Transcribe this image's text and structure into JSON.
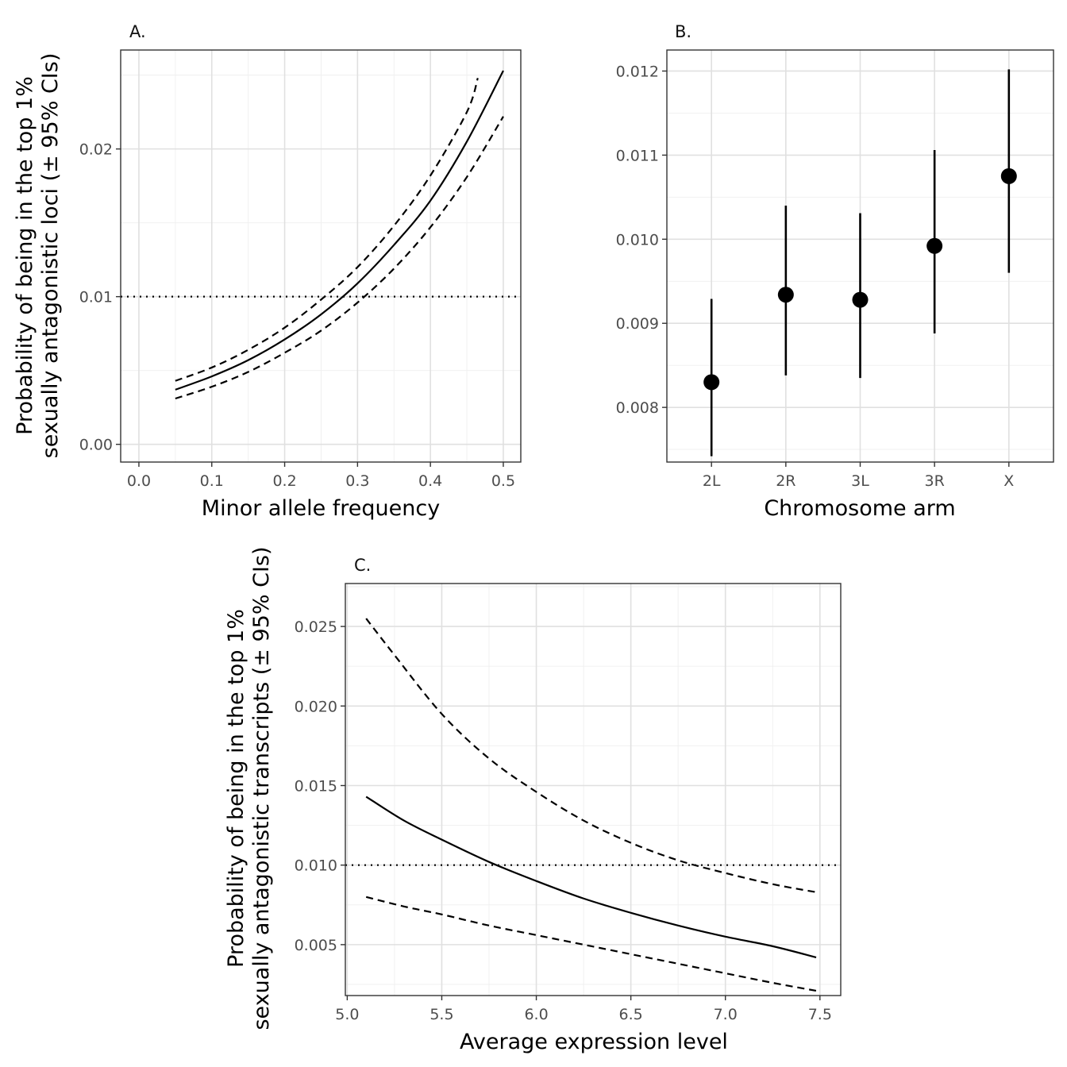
{
  "chart_data": [
    {
      "panel": "A.",
      "type": "line",
      "xlabel": "Minor allele frequency",
      "ylabel_lines": [
        "Probability of being in the top 1%",
        "sexually antagonistic loci (± 95% CIs)"
      ],
      "xlim": [
        -0.025,
        0.524
      ],
      "ylim": [
        -0.0012,
        0.0267
      ],
      "x_ticks": [
        0.0,
        0.1,
        0.2,
        0.3,
        0.4,
        0.5
      ],
      "x_tick_labels": [
        "0.0",
        "0.1",
        "0.2",
        "0.3",
        "0.4",
        "0.5"
      ],
      "y_ticks": [
        0.0,
        0.01,
        0.02
      ],
      "y_tick_labels": [
        "0.00",
        "0.01",
        "0.02"
      ],
      "reference_line": 0.01,
      "series": [
        {
          "name": "fit",
          "style": "solid",
          "x": [
            0.05,
            0.1,
            0.15,
            0.2,
            0.25,
            0.3,
            0.35,
            0.4,
            0.45,
            0.5
          ],
          "y": [
            0.0037,
            0.0046,
            0.0057,
            0.0071,
            0.0088,
            0.0109,
            0.0135,
            0.0165,
            0.0205,
            0.0253
          ]
        },
        {
          "name": "upper 95% CI",
          "style": "dashed",
          "x": [
            0.05,
            0.1,
            0.15,
            0.2,
            0.25,
            0.3,
            0.35,
            0.4,
            0.45,
            0.465
          ],
          "y": [
            0.0043,
            0.0052,
            0.0064,
            0.0079,
            0.0098,
            0.012,
            0.0148,
            0.0182,
            0.0225,
            0.0248
          ]
        },
        {
          "name": "lower 95% CI",
          "style": "dashed",
          "x": [
            0.05,
            0.1,
            0.15,
            0.2,
            0.25,
            0.3,
            0.35,
            0.4,
            0.45,
            0.5
          ],
          "y": [
            0.0031,
            0.0039,
            0.0049,
            0.0062,
            0.0077,
            0.0096,
            0.0119,
            0.0147,
            0.0181,
            0.0222
          ]
        }
      ]
    },
    {
      "panel": "B.",
      "type": "scatter",
      "xlabel": "Chromosome arm",
      "ylabel_lines": [],
      "categories": [
        "2L",
        "2R",
        "3L",
        "3R",
        "X"
      ],
      "values": [
        0.0083,
        0.00934,
        0.00928,
        0.00992,
        0.01075
      ],
      "ci_lower": [
        0.00742,
        0.00838,
        0.00835,
        0.00888,
        0.0096
      ],
      "ci_upper": [
        0.00929,
        0.0104,
        0.01031,
        0.01106,
        0.01202
      ],
      "ylim": [
        0.00735,
        0.01225
      ],
      "y_ticks": [
        0.008,
        0.009,
        0.01,
        0.011,
        0.012
      ],
      "y_tick_labels": [
        "0.008",
        "0.009",
        "0.010",
        "0.011",
        "0.012"
      ]
    },
    {
      "panel": "C.",
      "type": "line",
      "xlabel": "Average expression level",
      "ylabel_lines": [
        "Probability of being in the top 1%",
        "sexually antagonistic transcripts (± 95% CIs)"
      ],
      "xlim": [
        4.99,
        7.61
      ],
      "ylim": [
        0.0018,
        0.0277
      ],
      "x_ticks": [
        5.0,
        5.5,
        6.0,
        6.5,
        7.0,
        7.5
      ],
      "x_tick_labels": [
        "5.0",
        "5.5",
        "6.0",
        "6.5",
        "7.0",
        "7.5"
      ],
      "y_ticks": [
        0.005,
        0.01,
        0.015,
        0.02,
        0.025
      ],
      "y_tick_labels": [
        "0.005",
        "0.010",
        "0.015",
        "0.020",
        "0.025"
      ],
      "reference_line": 0.01,
      "series": [
        {
          "name": "fit",
          "style": "solid",
          "x": [
            5.1,
            5.3,
            5.5,
            5.75,
            6.0,
            6.25,
            6.5,
            6.75,
            7.0,
            7.25,
            7.48
          ],
          "y": [
            0.0143,
            0.0128,
            0.0116,
            0.0102,
            0.009,
            0.0079,
            0.007,
            0.0062,
            0.0055,
            0.0049,
            0.0042
          ]
        },
        {
          "name": "upper 95% CI",
          "style": "dashed",
          "x": [
            5.1,
            5.25,
            5.5,
            5.75,
            6.0,
            6.25,
            6.5,
            6.75,
            7.0,
            7.25,
            7.48
          ],
          "y": [
            0.0255,
            0.0232,
            0.0195,
            0.0167,
            0.0146,
            0.0128,
            0.0114,
            0.0103,
            0.0095,
            0.0088,
            0.0083
          ]
        },
        {
          "name": "lower 95% CI",
          "style": "dashed",
          "x": [
            5.1,
            5.3,
            5.5,
            5.75,
            6.0,
            6.25,
            6.5,
            6.75,
            7.0,
            7.25,
            7.48
          ],
          "y": [
            0.008,
            0.0074,
            0.0069,
            0.0062,
            0.0056,
            0.005,
            0.0044,
            0.0038,
            0.0032,
            0.0026,
            0.0021
          ]
        }
      ]
    }
  ]
}
